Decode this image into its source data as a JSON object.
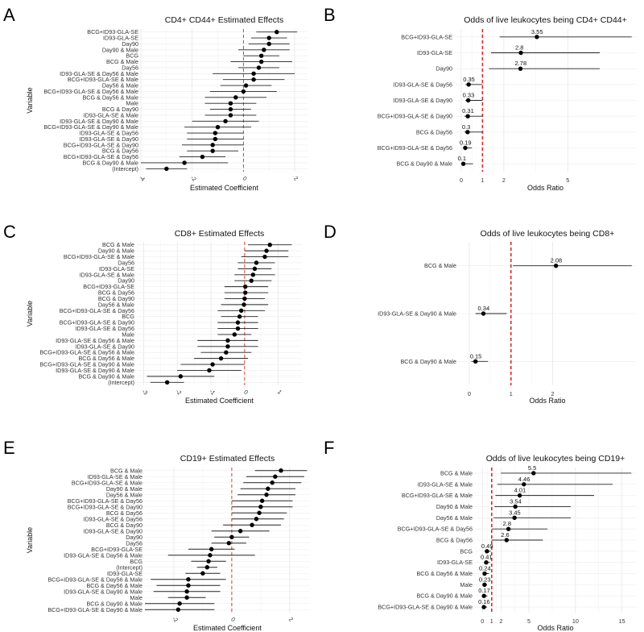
{
  "panel_labels": [
    "A",
    "B",
    "C",
    "D",
    "E",
    "F"
  ],
  "chart_data": [
    {
      "panel": "A",
      "type": "forest",
      "title": "CD4+ CD44+ Estimated Effects",
      "xlabel": "Estimated Coefficient",
      "ylabel": "Variable",
      "xlim": [
        -4,
        2.5
      ],
      "xticks": [
        -4,
        -2,
        0,
        2
      ],
      "xtick_labels": [
        "-4",
        "-2",
        "0",
        "2"
      ],
      "refline": 0,
      "grid": true,
      "categories": [
        "BCG+ID93-GLA-SE",
        "ID93-GLA-SE",
        "Day90",
        "Day90 & Male",
        "BCG",
        "BCG & Male",
        "Day56",
        "ID93-GLA-SE & Day56 & Male",
        "BCG+ID93-GLA-SE & Male",
        "Day56 & Male",
        "BCG+ID93-GLA-SE & Day56 & Male",
        "BCG & Day56 & Male",
        "Male",
        "BCG & Day90",
        "ID93-GLA-SE & Male",
        "ID93-GLA-SE & Day90 & Male",
        "BCG+ID93-GLA-SE & Day90 & Male",
        "ID93-GLA-SE & Day56",
        "ID93-GLA-SE & Day90",
        "BCG+ID93-GLA-SE & Day90",
        "BCG & Day56",
        "BCG+ID93-GLA-SE & Day56",
        "BCG & Day90 & Male",
        "(Intercept)"
      ],
      "estimates": [
        1.3,
        1.0,
        1.0,
        0.8,
        0.7,
        0.7,
        0.6,
        0.4,
        0.4,
        0.1,
        0.0,
        -0.3,
        -0.5,
        -0.5,
        -0.5,
        -0.7,
        -1.0,
        -1.1,
        -1.1,
        -1.2,
        -1.2,
        -1.6,
        -2.3,
        -3.0
      ],
      "ci_low": [
        0.5,
        0.3,
        0.2,
        -0.2,
        0.0,
        -0.5,
        -0.2,
        -1.2,
        -0.8,
        -0.9,
        -1.3,
        -1.5,
        -1.5,
        -1.3,
        -1.5,
        -2.0,
        -2.3,
        -2.2,
        -2.2,
        -2.4,
        -2.2,
        -2.5,
        -4.0,
        -3.8
      ],
      "ci_high": [
        2.1,
        1.7,
        1.8,
        1.8,
        1.4,
        1.9,
        1.4,
        2.0,
        1.6,
        1.1,
        1.3,
        0.9,
        0.5,
        0.3,
        0.5,
        0.6,
        0.3,
        0.0,
        0.0,
        0.0,
        -0.2,
        -0.7,
        -0.6,
        -2.2
      ]
    },
    {
      "panel": "B",
      "type": "odds_ratio",
      "title": "Odds of live leukocytes being CD4+ CD44+",
      "xlabel": "Odds Ratio",
      "xlim": [
        -0.3,
        8.2
      ],
      "xticks": [
        0,
        1,
        2,
        5
      ],
      "xtick_labels": [
        "0",
        "1",
        "2",
        "5"
      ],
      "refline": 1,
      "grid": true,
      "categories": [
        "BCG+ID93-GLA-SE",
        "ID93-GLA-SE",
        "Day90",
        "ID93-GLA-SE & Day56",
        "ID93-GLA-SE & Day90",
        "BCG+ID93-GLA-SE & Day90",
        "BCG & Day56",
        "BCG+ID93-GLA-SE & Day56",
        "BCG & Day90 & Male"
      ],
      "values": [
        3.55,
        2.8,
        2.78,
        0.35,
        0.33,
        0.31,
        0.3,
        0.19,
        0.1
      ],
      "value_labels": [
        "3.55",
        "2.8",
        "2.78",
        "0.35",
        "0.33",
        "0.31",
        "0.3",
        "0.19",
        "0.1"
      ],
      "ci_low": [
        1.8,
        1.4,
        1.3,
        0.2,
        0.2,
        0.15,
        0.15,
        0.08,
        0.02
      ],
      "ci_high": [
        8.0,
        6.5,
        6.5,
        1.0,
        1.0,
        1.0,
        1.0,
        0.5,
        0.55
      ]
    },
    {
      "panel": "C",
      "type": "forest",
      "title": "CD8+ Estimated Effects",
      "xlabel": "Estimated Coefficient",
      "ylabel": "Variable",
      "xlim": [
        -3.2,
        1.7
      ],
      "xticks": [
        -3,
        -2,
        -1,
        0,
        1
      ],
      "xtick_labels": [
        "-3",
        "-2",
        "-1",
        "0",
        "1"
      ],
      "refline": 0,
      "grid": true,
      "categories": [
        "BCG & Male",
        "Day90 & Male",
        "BCG+ID93-GLA-SE & Male",
        "Day56",
        "ID93-GLA-SE",
        "ID93-GLA-SE & Male",
        "Day90",
        "BCG+ID93-GLA-SE",
        "BCG & Day56",
        "BCG & Day90",
        "Day56 & Male",
        "BCG+ID93-GLA-SE & Day56",
        "BCG",
        "BCG+ID93-GLA-SE & Day90",
        "ID93-GLA-SE & Day56",
        "Male",
        "ID93-GLA-SE & Day56 & Male",
        "ID93-GLA-SE & Day90",
        "BCG+ID93-GLA-SE & Day56 & Male",
        "BCG & Day56 & Male",
        "BCG+ID93-GLA-SE & Day90 & Male",
        "ID93-GLA-SE & Day90 & Male",
        "BCG & Day90 & Male",
        "(Intercept)"
      ],
      "estimates": [
        0.75,
        0.65,
        0.6,
        0.35,
        0.3,
        0.25,
        0.2,
        0.02,
        0.02,
        0.0,
        -0.02,
        -0.1,
        -0.15,
        -0.2,
        -0.2,
        -0.3,
        -0.5,
        -0.5,
        -0.55,
        -0.7,
        -0.95,
        -1.05,
        -1.9,
        -2.3
      ],
      "ci_low": [
        0.1,
        0.0,
        -0.1,
        -0.2,
        -0.2,
        -0.3,
        -0.3,
        -0.6,
        -0.6,
        -0.6,
        -0.7,
        -0.8,
        -0.7,
        -0.8,
        -0.8,
        -0.8,
        -1.4,
        -1.4,
        -1.3,
        -1.5,
        -1.9,
        -2.0,
        -2.9,
        -2.8
      ],
      "ci_high": [
        1.4,
        1.3,
        1.3,
        0.9,
        0.8,
        0.9,
        0.8,
        0.7,
        0.7,
        0.6,
        0.7,
        0.6,
        0.4,
        0.4,
        0.4,
        0.2,
        0.4,
        0.4,
        0.2,
        0.1,
        0.0,
        -0.1,
        -0.9,
        -1.8
      ]
    },
    {
      "panel": "D",
      "type": "odds_ratio",
      "title": "Odds of live leukocytes being CD8+",
      "xlabel": "Odds Ratio",
      "xlim": [
        -0.25,
        4.0
      ],
      "xticks": [
        0,
        1,
        2
      ],
      "xtick_labels": [
        "0",
        "1",
        "2"
      ],
      "refline": 1,
      "grid": true,
      "categories": [
        "BCG & Male",
        "ID93-GLA-SE & Day90 & Male",
        "BCG & Day90 & Male"
      ],
      "values": [
        2.08,
        0.34,
        0.15
      ],
      "value_labels": [
        "2.08",
        "0.34",
        "0.15"
      ],
      "ci_low": [
        1.05,
        0.15,
        0.05
      ],
      "ci_high": [
        3.9,
        0.9,
        0.45
      ]
    },
    {
      "panel": "E",
      "type": "forest",
      "title": "CD19+ Estimated Effects",
      "xlabel": "Estimated Coefficient",
      "ylabel": "Variable",
      "xlim": [
        -3.0,
        2.7
      ],
      "xticks": [
        -2,
        0,
        2
      ],
      "xtick_labels": [
        "-2",
        "0",
        "2"
      ],
      "refline": 0,
      "grid": true,
      "categories": [
        "BCG & Male",
        "ID93-GLA-SE & Male",
        "BCG+ID93-GLA-SE & Male",
        "Day90 & Male",
        "Day56 & Male",
        "BCG+ID93-GLA-SE & Day56",
        "BCG+ID93-GLA-SE & Day90",
        "BCG & Day56",
        "ID93-GLA-SE & Day56",
        "BCG & Day90",
        "ID93-GLA-SE & Day90",
        "Day90",
        "Day56",
        "BCG+ID93-GLA-SE",
        "ID93-GLA-SE & Day56 & Male",
        "BCG",
        "(Intercept)",
        "ID93-GLA-SE",
        "BCG+ID93-GLA-SE & Day56 & Male",
        "BCG & Day56 & Male",
        "ID93-GLA-SE & Day90 & Male",
        "Male",
        "BCG & Day90 & Male",
        "BCG+ID93-GLA-SE & Day90 & Male"
      ],
      "estimates": [
        1.7,
        1.5,
        1.4,
        1.25,
        1.2,
        1.05,
        1.0,
        0.95,
        0.85,
        0.7,
        0.3,
        0.0,
        -0.1,
        -0.7,
        -0.75,
        -0.8,
        -0.85,
        -1.0,
        -1.5,
        -1.5,
        -1.55,
        -1.55,
        -1.8,
        -1.85
      ],
      "ci_low": [
        0.8,
        0.5,
        0.4,
        0.3,
        0.2,
        0.0,
        0.0,
        0.0,
        0.0,
        -0.3,
        -0.7,
        -0.6,
        -0.7,
        -1.5,
        -2.2,
        -1.4,
        -1.2,
        -1.6,
        -2.8,
        -2.6,
        -2.7,
        -2.2,
        -3.0,
        -3.0
      ],
      "ci_high": [
        2.6,
        2.5,
        2.4,
        2.2,
        2.2,
        2.1,
        2.1,
        1.9,
        1.8,
        1.7,
        1.3,
        0.6,
        0.5,
        0.1,
        0.8,
        -0.2,
        -0.5,
        -0.4,
        -0.2,
        -0.4,
        -0.4,
        -0.9,
        -0.6,
        -0.6
      ]
    },
    {
      "panel": "F",
      "type": "odds_ratio",
      "title": "Odds of live leukocytes being CD19+",
      "xlabel": "Odds Ratio",
      "xlim": [
        -0.8,
        16.5
      ],
      "xticks": [
        0,
        1,
        2,
        5,
        10,
        15
      ],
      "xtick_labels": [
        "0",
        "1",
        "2",
        "5",
        "10",
        "15"
      ],
      "refline": 1,
      "grid": true,
      "categories": [
        "BCG & Male",
        "ID93-GLA-SE & Male",
        "BCG+ID93-GLA-SE & Male",
        "Day90 & Male",
        "Day56 & Male",
        "BCG+ID93-GLA-SE & Day56",
        "BCG & Day56",
        "BCG",
        "ID93-GLA-SE",
        "BCG & Day56 & Male",
        "Male",
        "BCG & Day90 & Male",
        "BCG+ID93-GLA-SE & Day90 & Male"
      ],
      "values": [
        5.5,
        4.46,
        4.01,
        3.54,
        3.45,
        2.8,
        2.6,
        0.49,
        0.41,
        0.24,
        0.23,
        0.17,
        0.16
      ],
      "value_labels": [
        "5.5",
        "4.46",
        "4.01",
        "3.54",
        "3.45",
        "2.8",
        "2.6",
        "0.49",
        "0.41",
        "0.24",
        "0.23",
        "0.17",
        "0.16"
      ],
      "ci_low": [
        2.0,
        1.6,
        1.4,
        1.3,
        1.2,
        1.0,
        1.0,
        0.25,
        0.2,
        0.06,
        0.1,
        0.05,
        0.05
      ],
      "ci_high": [
        16.0,
        14.0,
        12.0,
        9.5,
        9.5,
        7.0,
        6.5,
        0.9,
        0.8,
        0.7,
        0.5,
        0.55,
        0.5
      ]
    }
  ]
}
